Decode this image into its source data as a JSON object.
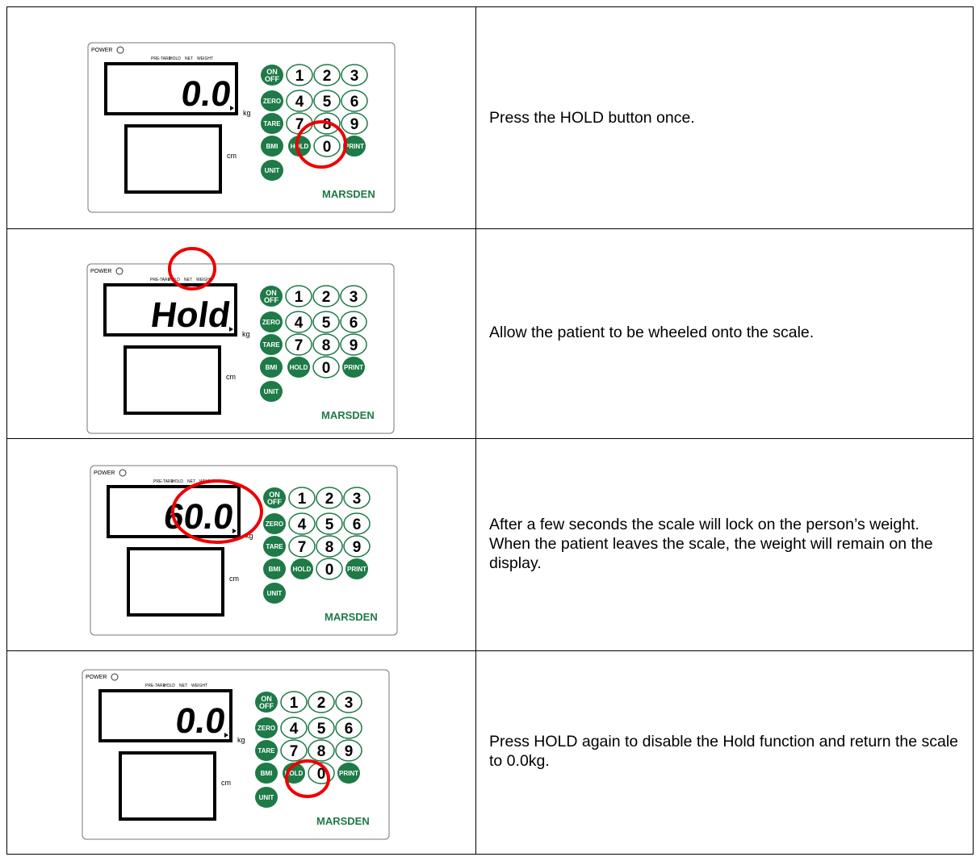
{
  "panel": {
    "power": "POWER",
    "pre_tare": "PRE-TARE",
    "hold_label": "HOLD",
    "net": "NET",
    "weight": "WEIGHT",
    "kg": "kg",
    "cm": "cm",
    "brand": "MARSDEN",
    "buttons": [
      [
        {
          "text": [
            "ON",
            "OFF"
          ],
          "filled": true
        },
        {
          "text": "1",
          "filled": false
        },
        {
          "text": "2",
          "filled": false
        },
        {
          "text": "3",
          "filled": false
        }
      ],
      [
        {
          "text": "ZERO",
          "filled": true
        },
        {
          "text": "4",
          "filled": false
        },
        {
          "text": "5",
          "filled": false
        },
        {
          "text": "6",
          "filled": false
        }
      ],
      [
        {
          "text": "TARE",
          "filled": true
        },
        {
          "text": "7",
          "filled": false
        },
        {
          "text": "8",
          "filled": false
        },
        {
          "text": "9",
          "filled": false
        }
      ],
      [
        {
          "text": "BMI",
          "filled": true
        },
        {
          "text": "HOLD",
          "filled": true
        },
        {
          "text": "0",
          "filled": false
        },
        {
          "text": "PRINT",
          "filled": true
        }
      ],
      [
        {
          "text": "UNIT",
          "filled": true
        }
      ]
    ]
  },
  "rows": [
    {
      "display": "0.0",
      "instruction": "Press the HOLD button once."
    },
    {
      "display": "Hold",
      "instruction": "Allow the patient to be wheeled onto the scale."
    },
    {
      "display": "60.0",
      "instruction": "After a few seconds the scale will lock on the person’s weight. When the patient leaves the scale, the weight will remain on the display."
    },
    {
      "display": "0.0",
      "instruction": "Press HOLD again to disable the Hold function and return the scale to 0.0kg."
    }
  ]
}
